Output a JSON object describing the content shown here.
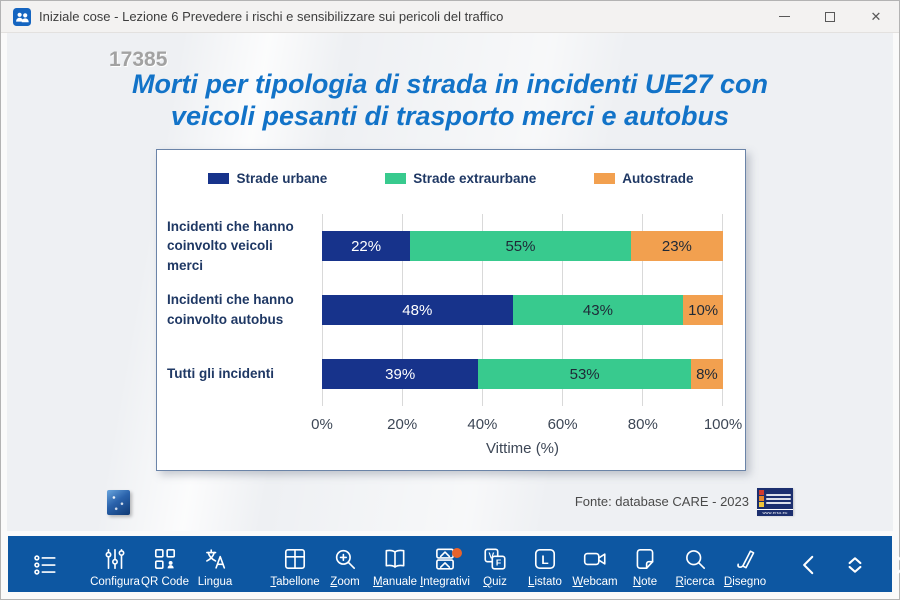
{
  "window": {
    "title": "Iniziale cose - Lezione 6 Prevedere i rischi e sensibilizzare sui pericoli del traffico",
    "controls": {
      "minimize": "minimize",
      "maximize": "maximize",
      "close": "close"
    }
  },
  "slide": {
    "code": "17385",
    "title": "Morti per tipologia di strada in incidenti UE27 con veicoli pesanti di trasporto merci e autobus",
    "source": "Fonte: database CARE - 2023",
    "erso_logo_text": "www.erso.eu"
  },
  "chart_data": {
    "type": "bar",
    "orientation": "horizontal",
    "stacked": true,
    "categories": [
      "Incidenti che hanno coinvolto veicoli merci",
      "Incidenti che hanno coinvolto autobus",
      "Tutti gli incidenti"
    ],
    "series": [
      {
        "name": "Strade urbane",
        "color": "#17338b",
        "value_color": "#ffffff",
        "values": [
          22,
          48,
          39
        ]
      },
      {
        "name": "Strade extraurbane",
        "color": "#38ca8e",
        "value_color": "#1f2937",
        "values": [
          55,
          43,
          53
        ]
      },
      {
        "name": "Autostrade",
        "color": "#f2a04f",
        "value_color": "#1f2937",
        "values": [
          23,
          10,
          8
        ]
      }
    ],
    "value_suffix": "%",
    "xlabel": "Vittime (%)",
    "x_ticks": [
      "0%",
      "20%",
      "40%",
      "60%",
      "80%",
      "100%"
    ],
    "xlim": [
      0,
      100
    ],
    "grid": true,
    "legend_position": "top"
  },
  "toolbar": {
    "badge_color": "#e8632c",
    "items": [
      {
        "icon": "menu-list-icon",
        "label": "",
        "slug": "menu",
        "underline": false,
        "badge": false
      },
      {
        "icon": "sliders-icon",
        "label": "Configura",
        "slug": "configura",
        "underline": false,
        "badge": false
      },
      {
        "icon": "qr-code-icon",
        "label": "QR Code",
        "slug": "qr-code",
        "underline": false,
        "badge": false
      },
      {
        "icon": "translate-icon",
        "label": "Lingua",
        "slug": "lingua",
        "underline": false,
        "badge": false
      },
      {
        "icon": "grid-board-icon",
        "label": "Tabellone",
        "slug": "tabellone",
        "underline": true,
        "badge": false
      },
      {
        "icon": "zoom-in-icon",
        "label": "Zoom",
        "slug": "zoom",
        "underline": true,
        "badge": false
      },
      {
        "icon": "open-book-icon",
        "label": "Manuale",
        "slug": "manuale",
        "underline": true,
        "badge": false
      },
      {
        "icon": "slides-stack-icon",
        "label": "Integrativi",
        "slug": "integrativi",
        "underline": true,
        "badge": true
      },
      {
        "icon": "true-false-icon",
        "label": "Quiz",
        "slug": "quiz",
        "underline": true,
        "badge": false
      },
      {
        "icon": "list-l-icon",
        "label": "Listato",
        "slug": "listato",
        "underline": true,
        "badge": false
      },
      {
        "icon": "webcam-icon",
        "label": "Webcam",
        "slug": "webcam",
        "underline": true,
        "badge": false
      },
      {
        "icon": "note-page-icon",
        "label": "Note",
        "slug": "note",
        "underline": true,
        "badge": false
      },
      {
        "icon": "search-icon",
        "label": "Ricerca",
        "slug": "ricerca",
        "underline": true,
        "badge": false
      },
      {
        "icon": "pen-icon",
        "label": "Disegno",
        "slug": "disegno",
        "underline": true,
        "badge": false
      },
      {
        "icon": "chevron-left-icon",
        "label": "",
        "slug": "prev",
        "underline": false,
        "badge": false
      },
      {
        "icon": "chevron-up-down-icon",
        "label": "",
        "slug": "scroll",
        "underline": false,
        "badge": false
      },
      {
        "icon": "chevron-right-icon",
        "label": "",
        "slug": "next",
        "underline": false,
        "badge": false
      },
      {
        "icon": "return-icon",
        "label": "",
        "slug": "return",
        "underline": false,
        "badge": false
      }
    ]
  }
}
